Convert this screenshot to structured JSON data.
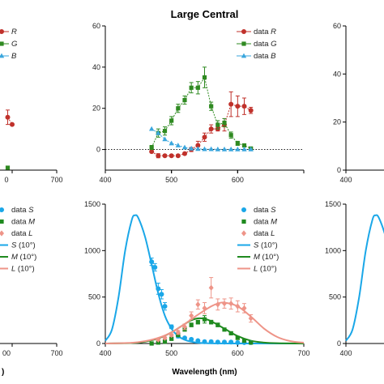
{
  "chart_data": [
    {
      "id": "left-top",
      "type": "line",
      "title": "",
      "xlim": [
        400,
        700
      ],
      "ylim": [
        0,
        60
      ],
      "xticks": [
        700
      ],
      "partial_xticks": [
        "0"
      ],
      "yticks": [],
      "xlabel": "",
      "legend": {
        "placement": "top-left",
        "entries": [
          {
            "prefix": "",
            "italic": "R",
            "color": "#c0312b"
          },
          {
            "prefix": "",
            "italic": "G",
            "color": "#2f8a21"
          },
          {
            "prefix": "",
            "italic": "B",
            "color": "#3aa6dd"
          }
        ]
      },
      "series": [
        {
          "key": "R",
          "marker": "circle",
          "color": "#c0312b",
          "x": [
            590,
            600
          ],
          "y": [
            22,
            19
          ],
          "err": [
            3,
            0
          ]
        },
        {
          "key": "G",
          "marker": "square",
          "color": "#2f8a21",
          "x": [
            590
          ],
          "y": [
            1
          ],
          "err": [
            0
          ]
        }
      ],
      "baseline": 0
    },
    {
      "id": "center-top",
      "type": "line",
      "title": "Large Central",
      "xlim": [
        400,
        700
      ],
      "ylim": [
        -10,
        60
      ],
      "xticks": [
        400,
        500,
        600
      ],
      "yticks": [
        0,
        20,
        40,
        60
      ],
      "xlabel": "",
      "legend": {
        "placement": "top-right",
        "entries": [
          {
            "prefix": "data ",
            "italic": "R",
            "color": "#c0312b",
            "marker": "circle"
          },
          {
            "prefix": "data ",
            "italic": "G",
            "color": "#2f8a21",
            "marker": "square"
          },
          {
            "prefix": "data ",
            "italic": "B",
            "color": "#3aa6dd",
            "marker": "triangle"
          }
        ]
      },
      "series": [
        {
          "name": "data R",
          "key": "R",
          "marker": "circle",
          "color": "#c0312b",
          "x": [
            470,
            480,
            490,
            500,
            510,
            520,
            530,
            540,
            550,
            560,
            570,
            580,
            590,
            600,
            610,
            620
          ],
          "y": [
            -1,
            -3,
            -3,
            -3,
            -3,
            -2,
            0,
            2,
            6,
            10,
            10,
            12,
            22,
            21,
            21,
            19
          ],
          "err": [
            0,
            1,
            0.5,
            0.5,
            0.5,
            0.5,
            1,
            2,
            2,
            2,
            1,
            3,
            6,
            5,
            4,
            1.5
          ]
        },
        {
          "name": "data G",
          "key": "G",
          "marker": "square",
          "color": "#2f8a21",
          "x": [
            470,
            480,
            490,
            500,
            510,
            520,
            530,
            540,
            550,
            560,
            570,
            580,
            590,
            600,
            610,
            620
          ],
          "y": [
            1,
            8,
            9,
            14,
            20,
            24,
            30,
            30,
            35,
            21,
            12,
            13,
            7,
            3,
            2,
            0.5
          ],
          "err": [
            1,
            2,
            2,
            2,
            2,
            2,
            2.5,
            3,
            5,
            2,
            2,
            2,
            1.5,
            1,
            0.5,
            0.3
          ]
        },
        {
          "name": "data B",
          "key": "B",
          "marker": "triangle",
          "color": "#3aa6dd",
          "x": [
            470,
            480,
            490,
            500,
            510,
            520,
            530,
            540,
            550,
            560,
            570,
            580,
            590,
            600,
            610,
            620
          ],
          "y": [
            10,
            8,
            5,
            3,
            2,
            1,
            0.5,
            0.3,
            0.2,
            0.2,
            0.1,
            0.1,
            0.1,
            0.1,
            0.1,
            0.1
          ],
          "err": [
            0,
            0,
            0,
            0,
            0,
            0,
            0,
            0,
            0,
            0,
            0,
            0,
            0,
            0,
            0,
            0
          ]
        }
      ],
      "baseline": 0
    },
    {
      "id": "right-top",
      "type": "line",
      "title": "",
      "xlim": [
        400,
        700
      ],
      "ylim": [
        0,
        60
      ],
      "xticks": [
        400
      ],
      "yticks": [
        60,
        40,
        20,
        0
      ],
      "xlabel": "",
      "series": [],
      "baseline": 0
    },
    {
      "id": "left-bottom",
      "type": "line",
      "title": "",
      "xlim": [
        400,
        700
      ],
      "ylim": [
        0,
        1500
      ],
      "xticks": [
        700
      ],
      "partial_xticks": [
        "00"
      ],
      "xlabel": "",
      "xlabel_partial": ")",
      "legend": {
        "placement": "top-left",
        "entries": [
          {
            "prefix": "data ",
            "italic": "S",
            "color": "#1aa7e8",
            "marker": "circle"
          },
          {
            "prefix": "data ",
            "italic": "M",
            "color": "#1f8a1f",
            "marker": "square"
          },
          {
            "prefix": "data ",
            "italic": "L",
            "color": "#ee9488",
            "marker": "diamond"
          },
          {
            "prefix": "",
            "italic": "S",
            "suffix": " (10°)",
            "color": "#1aa7e8",
            "marker": "line"
          },
          {
            "prefix": "",
            "italic": "M",
            "suffix": " (10°)",
            "color": "#1f8a1f",
            "marker": "line"
          },
          {
            "prefix": "",
            "italic": "L",
            "suffix": " (10°)",
            "color": "#ee9488",
            "marker": "line"
          }
        ]
      },
      "series": []
    },
    {
      "id": "center-bottom",
      "type": "line",
      "title": "",
      "xlim": [
        400,
        700
      ],
      "ylim": [
        0,
        1500
      ],
      "xticks": [
        400,
        500,
        600,
        700
      ],
      "yticks": [
        0,
        500,
        1000,
        1500
      ],
      "xlabel": "Wavelength (nm)",
      "legend": {
        "placement": "top-right",
        "entries": [
          {
            "prefix": "data ",
            "italic": "S",
            "color": "#1aa7e8",
            "marker": "circle"
          },
          {
            "prefix": "data ",
            "italic": "M",
            "color": "#1f8a1f",
            "marker": "square"
          },
          {
            "prefix": "data ",
            "italic": "L",
            "color": "#ee9488",
            "marker": "diamond"
          },
          {
            "prefix": "",
            "italic": "S",
            "suffix": " (10°)",
            "color": "#1aa7e8",
            "marker": "line"
          },
          {
            "prefix": "",
            "italic": "M",
            "suffix": " (10°)",
            "color": "#1f8a1f",
            "marker": "line"
          },
          {
            "prefix": "",
            "italic": "L",
            "suffix": " (10°)",
            "color": "#ee9488",
            "marker": "line"
          }
        ]
      },
      "curves": [
        {
          "name": "S (10°)",
          "color": "#1aa7e8",
          "x": [
            400,
            410,
            420,
            430,
            440,
            445,
            450,
            460,
            470,
            480,
            490,
            500,
            510,
            520,
            530,
            540,
            560,
            600,
            700
          ],
          "y": [
            30,
            150,
            500,
            1000,
            1330,
            1380,
            1350,
            1150,
            850,
            540,
            300,
            160,
            80,
            40,
            20,
            8,
            2,
            0,
            0
          ]
        },
        {
          "name": "M (10°)",
          "color": "#1f8a1f",
          "x": [
            400,
            440,
            460,
            480,
            500,
            520,
            530,
            540,
            550,
            560,
            580,
            600,
            620,
            640,
            660,
            700
          ],
          "y": [
            0,
            5,
            20,
            55,
            120,
            210,
            250,
            270,
            265,
            240,
            160,
            80,
            30,
            10,
            3,
            0
          ]
        },
        {
          "name": "L (10°)",
          "color": "#ee9488",
          "x": [
            400,
            440,
            460,
            480,
            500,
            520,
            540,
            560,
            570,
            580,
            600,
            620,
            640,
            660,
            680,
            700
          ],
          "y": [
            0,
            8,
            25,
            60,
            120,
            210,
            310,
            400,
            430,
            440,
            400,
            290,
            160,
            70,
            25,
            8
          ]
        }
      ],
      "series": [
        {
          "name": "data S",
          "key": "S",
          "marker": "circle",
          "color": "#1aa7e8",
          "x": [
            470,
            475,
            480,
            485,
            490,
            500,
            510,
            520,
            530,
            540,
            550,
            560,
            570,
            580,
            590,
            600,
            610,
            620
          ],
          "y": [
            880,
            820,
            590,
            530,
            400,
            180,
            80,
            60,
            45,
            30,
            20,
            20,
            15,
            15,
            15,
            10,
            10,
            10
          ],
          "err": [
            40,
            40,
            60,
            50,
            40,
            20,
            20,
            10,
            10,
            10,
            5,
            5,
            5,
            5,
            5,
            5,
            5,
            5
          ]
        },
        {
          "name": "data M",
          "key": "M",
          "marker": "square",
          "color": "#1f8a1f",
          "x": [
            470,
            480,
            490,
            500,
            510,
            520,
            530,
            540,
            550,
            560,
            570,
            580,
            590,
            600,
            610,
            620
          ],
          "y": [
            0,
            10,
            20,
            50,
            90,
            150,
            200,
            230,
            260,
            230,
            200,
            150,
            110,
            60,
            30,
            10
          ],
          "err": [
            0,
            5,
            5,
            10,
            10,
            15,
            20,
            20,
            40,
            20,
            20,
            15,
            15,
            10,
            5,
            5
          ]
        },
        {
          "name": "data L",
          "key": "L",
          "marker": "diamond",
          "color": "#ee9488",
          "x": [
            480,
            490,
            500,
            510,
            520,
            530,
            540,
            550,
            560,
            570,
            580,
            590,
            600,
            610,
            620
          ],
          "y": [
            40,
            60,
            90,
            120,
            180,
            300,
            420,
            380,
            600,
            420,
            430,
            430,
            400,
            380,
            270
          ],
          "err": [
            10,
            10,
            15,
            20,
            30,
            40,
            50,
            60,
            110,
            60,
            50,
            60,
            60,
            50,
            40
          ]
        }
      ]
    },
    {
      "id": "right-bottom",
      "type": "line",
      "title": "",
      "xlim": [
        400,
        700
      ],
      "ylim": [
        0,
        1500
      ],
      "xticks": [
        400
      ],
      "yticks": [
        1500,
        1000,
        500,
        0
      ],
      "xlabel": "",
      "curves": [
        {
          "name": "S (10°)",
          "color": "#1aa7e8",
          "x": [
            400,
            410,
            420,
            430,
            440,
            445,
            450,
            460,
            470,
            480,
            490,
            500,
            510,
            520
          ],
          "y": [
            30,
            150,
            500,
            1000,
            1330,
            1380,
            1350,
            1150,
            850,
            540,
            300,
            160,
            80,
            40
          ]
        }
      ],
      "series": []
    }
  ],
  "legend_labels": {
    "data": "data ",
    "ten_deg": " (10°)"
  }
}
